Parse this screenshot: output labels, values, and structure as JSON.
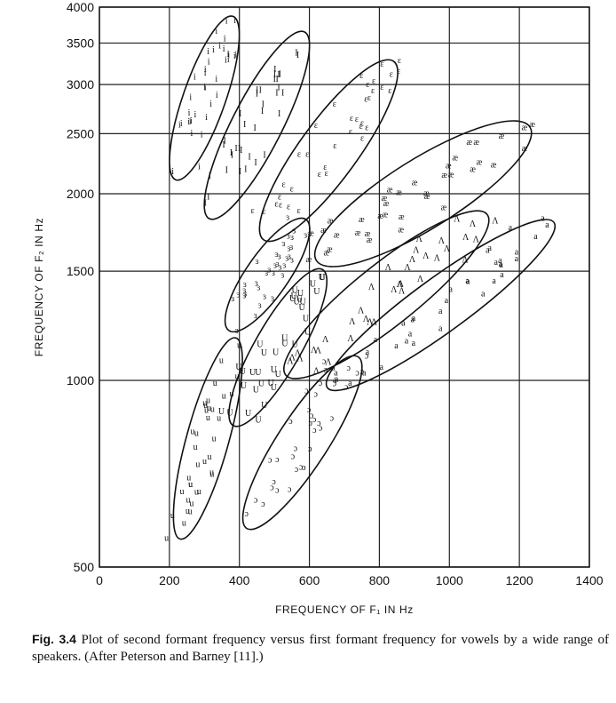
{
  "chart_data": {
    "type": "scatter",
    "xlabel": "FREQUENCY OF F₁ IN Hz",
    "ylabel": "FREQUENCY OF F₂ IN Hz",
    "x_ticks": [
      "0",
      "200",
      "400",
      "600",
      "800",
      "1000",
      "1200",
      "1400"
    ],
    "y_ticks": [
      "500",
      "1000",
      "1500",
      "2000",
      "2500",
      "3000",
      "3500",
      "4000"
    ],
    "xlim": [
      0,
      1400
    ],
    "ylim": [
      500,
      4000
    ],
    "y_scale": "log",
    "grid": true,
    "vowel_regions": [
      {
        "symbol": "i",
        "f1_range": [
          200,
          400
        ],
        "f2_range": [
          2100,
          3700
        ]
      },
      {
        "symbol": "I",
        "f1_range": [
          300,
          600
        ],
        "f2_range": [
          1800,
          3300
        ]
      },
      {
        "symbol": "ε",
        "f1_range": [
          450,
          800
        ],
        "f2_range": [
          1700,
          3100
        ]
      },
      {
        "symbol": "æ",
        "f1_range": [
          650,
          1200
        ],
        "f2_range": [
          1600,
          2600
        ]
      },
      {
        "symbol": "a",
        "f1_range": [
          600,
          1300
        ],
        "f2_range": [
          850,
          1800
        ]
      },
      {
        "symbol": "ɔ",
        "f1_range": [
          450,
          750
        ],
        "f2_range": [
          620,
          1100
        ]
      },
      {
        "symbol": "U",
        "f1_range": [
          350,
          600
        ],
        "f2_range": [
          850,
          1450
        ]
      },
      {
        "symbol": "u",
        "f1_range": [
          200,
          400
        ],
        "f2_range": [
          560,
          1150
        ]
      },
      {
        "symbol": "Λ",
        "f1_range": [
          550,
          1000
        ],
        "f2_range": [
          1000,
          1800
        ]
      },
      {
        "symbol": "ɜ",
        "f1_range": [
          350,
          600
        ],
        "f2_range": [
          1250,
          1800
        ]
      }
    ],
    "ellipses": [
      {
        "label": "i",
        "cx": 290,
        "cy": 2850,
        "rx_axis": [
          [
            230,
            2200
          ],
          [
            370,
            3700
          ]
        ],
        "width_f1": 110
      },
      {
        "label": "I",
        "cx": 440,
        "cy": 2650,
        "rx_axis": [
          [
            330,
            1900
          ],
          [
            570,
            3500
          ]
        ],
        "width_f1": 130
      },
      {
        "label": "ε",
        "cx": 640,
        "cy": 2400,
        "rx_axis": [
          [
            490,
            1750
          ],
          [
            820,
            3150
          ]
        ],
        "width_f1": 150
      },
      {
        "label": "æ",
        "cx": 930,
        "cy": 2050,
        "rx_axis": [
          [
            650,
            1600
          ],
          [
            1200,
            2500
          ]
        ],
        "width_f1": 180
      },
      {
        "label": "Λ",
        "cx": 800,
        "cy": 1450,
        "rx_axis": [
          [
            560,
            1050
          ],
          [
            1080,
            1800
          ]
        ],
        "width_f1": 160
      },
      {
        "label": "a",
        "cx": 960,
        "cy": 1350,
        "rx_axis": [
          [
            680,
            1000
          ],
          [
            1270,
            1750
          ]
        ],
        "width_f1": 140
      },
      {
        "label": "ɜ",
        "cx": 460,
        "cy": 1500,
        "rx_axis": [
          [
            390,
            1250
          ],
          [
            570,
            1750
          ]
        ],
        "width_f1": 110
      },
      {
        "label": "U",
        "cx": 500,
        "cy": 1150,
        "rx_axis": [
          [
            400,
            880
          ],
          [
            620,
            1450
          ]
        ],
        "width_f1": 120
      },
      {
        "label": "u",
        "cx": 300,
        "cy": 800,
        "rx_axis": [
          [
            240,
            580
          ],
          [
            380,
            1120
          ]
        ],
        "width_f1": 110
      },
      {
        "label": "ɔ",
        "cx": 580,
        "cy": 820,
        "rx_axis": [
          [
            440,
            600
          ],
          [
            720,
            1050
          ]
        ],
        "width_f1": 130
      }
    ]
  },
  "caption": {
    "fig_label": "Fig. 3.4",
    "text": "Plot of second formant frequency versus first formant frequency for vowels by a wide range of speakers. (After Peterson and Barney [11].)"
  }
}
